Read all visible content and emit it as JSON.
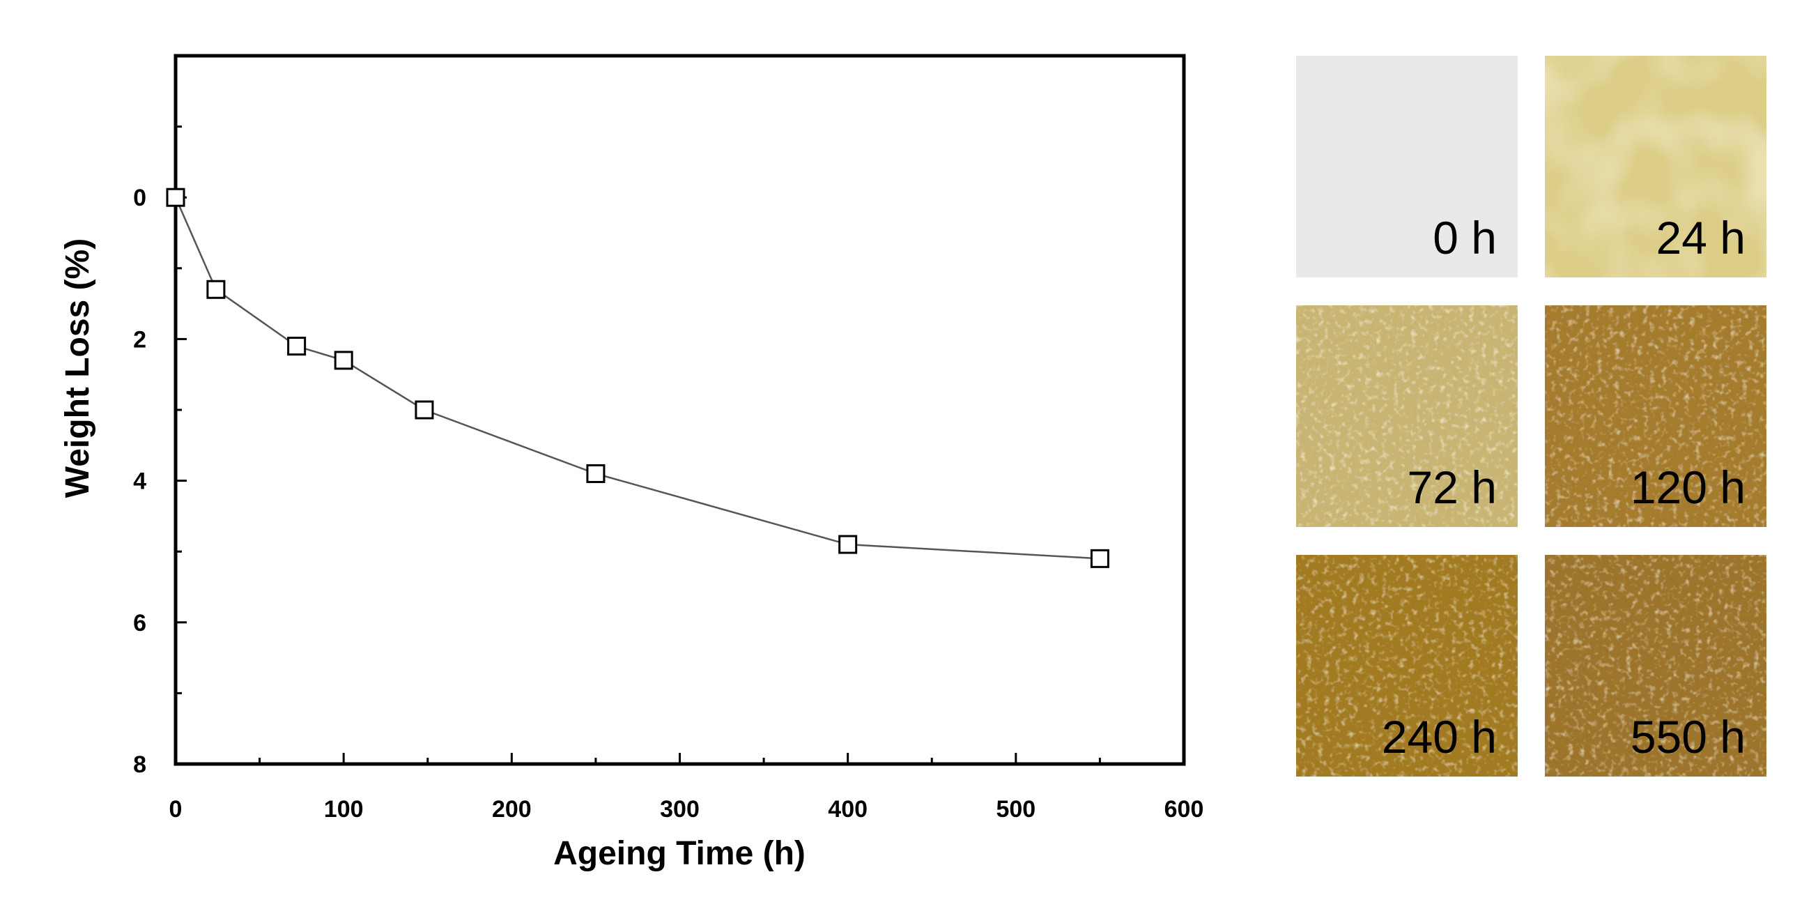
{
  "chart_data": {
    "type": "line",
    "title": "",
    "xlabel": "Ageing Time (h)",
    "ylabel": "Weight Loss (%)",
    "xlim": [
      0,
      600
    ],
    "ylim": [
      -2,
      8
    ],
    "y_axis_inverted": true,
    "grid": false,
    "legend": "none",
    "x_ticks": [
      0,
      100,
      200,
      300,
      400,
      500,
      600
    ],
    "x_tick_labels": [
      "0",
      "100",
      "200",
      "300",
      "400",
      "500",
      "600"
    ],
    "y_ticks": [
      0,
      2,
      4,
      6,
      8
    ],
    "y_tick_labels": [
      "0",
      "2",
      "4",
      "6",
      "8"
    ],
    "marker": "open-square",
    "line_color": "#555555",
    "marker_color": "#000000",
    "series": [
      {
        "x": [
          0,
          24,
          72,
          100,
          148,
          250,
          400,
          550
        ],
        "y": [
          0,
          1.3,
          2.1,
          2.3,
          3.0,
          3.9,
          4.9,
          5.1
        ]
      }
    ]
  },
  "photo_panel": {
    "tiles": [
      {
        "label": "0 h",
        "color": "#e8e9eb",
        "texture": "smooth"
      },
      {
        "label": "24 h",
        "color": "#dccd87",
        "texture": "cloudy"
      },
      {
        "label": "72 h",
        "color": "#c8b473",
        "texture": "speckled"
      },
      {
        "label": "120 h",
        "color": "#a57b2e",
        "texture": "speckled"
      },
      {
        "label": "240 h",
        "color": "#a27a22",
        "texture": "speckled"
      },
      {
        "label": "550 h",
        "color": "#9d742b",
        "texture": "speckled"
      }
    ]
  }
}
